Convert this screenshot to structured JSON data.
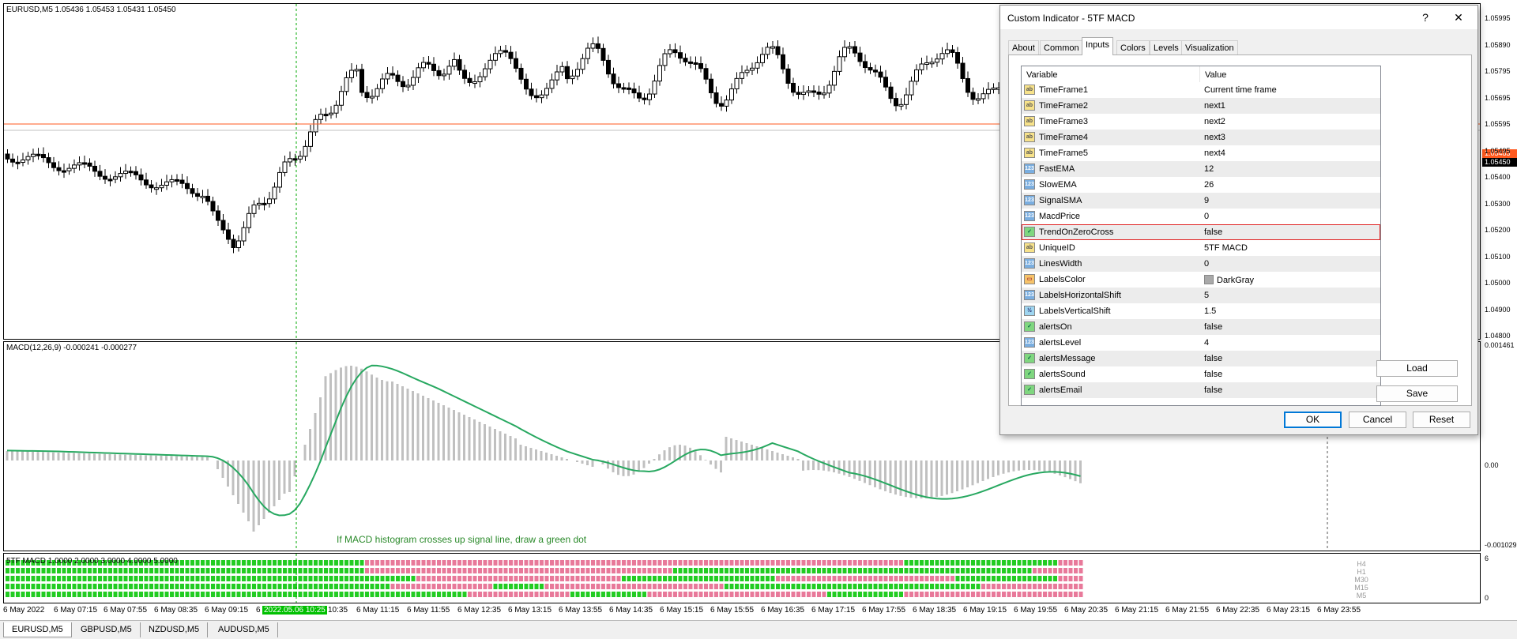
{
  "main_chart": {
    "label": "EURUSD,M5  1.05436 1.05453 1.05431 1.05450",
    "price_labels": [
      "1.05995",
      "1.05890",
      "1.05795",
      "1.05695",
      "1.05595",
      "1.05495",
      "1.05400",
      "1.05300",
      "1.05200",
      "1.05100",
      "1.05000",
      "1.04900",
      "1.04800"
    ],
    "bid_badge": "1.05483",
    "ask_badge": "1.05450",
    "bid_color": "#ff5a1f",
    "ask_color": "#000000"
  },
  "macd": {
    "label": "MACD(12,26,9) -0.000241 -0.000277",
    "scale_top": "0.001461",
    "scale_zero": "0.00",
    "scale_bottom": "-0.001029",
    "annotation": "If MACD histogram crosses up signal line, draw a green dot",
    "signal_color": "#27a860",
    "histogram_color": "#c0c0c0"
  },
  "tf_macd": {
    "label": "5TF MACD 1.0000 2.0000 3.0000 4.0000 5.0000",
    "scale_top": "6",
    "scale_bottom": "0",
    "timeframe_labels": [
      "H4",
      "H1",
      "M30",
      "M15",
      "M5"
    ],
    "up_color": "#22cc22",
    "down_color": "#e8799a"
  },
  "time_axis": {
    "labels": [
      "6 May 2022",
      "6 May 07:15",
      "6 May 07:55",
      "6 May 08:35",
      "6 May 09:15",
      "6",
      "10:35",
      "6 May 11:15",
      "6 May 11:55",
      "6 May 12:35",
      "6 May 13:15",
      "6 May 13:55",
      "6 May 14:35",
      "6 May 15:15",
      "6 May 15:55",
      "6 May 16:35",
      "6 May 17:15",
      "6 May 17:55",
      "6 May 18:35",
      "6 May 19:15",
      "6 May 19:55",
      "6 May 20:35",
      "6 May 21:15",
      "6 May 21:55",
      "6 May 22:35",
      "6 May 23:15",
      "6 May 23:55"
    ],
    "crosshair_time": "2022.05.06 10:25"
  },
  "symbol_tabs": [
    "EURUSD,M5",
    "GBPUSD,M5",
    "NZDUSD,M5",
    "AUDUSD,M5"
  ],
  "dialog": {
    "title": "Custom Indicator - 5TF MACD",
    "help_label": "?",
    "close_label": "✕",
    "tabs": [
      "About",
      "Common",
      "Inputs",
      "Colors",
      "Levels",
      "Visualization"
    ],
    "active_tab": "Inputs",
    "columns": [
      "Variable",
      "Value"
    ],
    "rows": [
      {
        "icon": "ab",
        "name": "TimeFrame1",
        "value": "Current time frame"
      },
      {
        "icon": "ab",
        "name": "TimeFrame2",
        "value": "next1"
      },
      {
        "icon": "ab",
        "name": "TimeFrame3",
        "value": "next2"
      },
      {
        "icon": "ab",
        "name": "TimeFrame4",
        "value": "next3"
      },
      {
        "icon": "ab",
        "name": "TimeFrame5",
        "value": "next4"
      },
      {
        "icon": "123",
        "name": "FastEMA",
        "value": "12"
      },
      {
        "icon": "123",
        "name": "SlowEMA",
        "value": "26"
      },
      {
        "icon": "123",
        "name": "SignalSMA",
        "value": "9"
      },
      {
        "icon": "123",
        "name": "MacdPrice",
        "value": "0"
      },
      {
        "icon": "bool",
        "name": "TrendOnZeroCross",
        "value": "false"
      },
      {
        "icon": "ab",
        "name": "UniqueID",
        "value": "5TF MACD"
      },
      {
        "icon": "123",
        "name": "LinesWidth",
        "value": "0"
      },
      {
        "icon": "color",
        "name": "LabelsColor",
        "value": "DarkGray"
      },
      {
        "icon": "123",
        "name": "LabelsHorizontalShift",
        "value": "5"
      },
      {
        "icon": "frac",
        "name": "LabelsVerticalShift",
        "value": "1.5"
      },
      {
        "icon": "bool",
        "name": "alertsOn",
        "value": "false"
      },
      {
        "icon": "123",
        "name": "alertsLevel",
        "value": "4"
      },
      {
        "icon": "bool",
        "name": "alertsMessage",
        "value": "false"
      },
      {
        "icon": "bool",
        "name": "alertsSound",
        "value": "false"
      },
      {
        "icon": "bool",
        "name": "alertsEmail",
        "value": "false"
      }
    ],
    "selected_row": "TrendOnZeroCross",
    "load_label": "Load",
    "save_label": "Save",
    "ok_label": "OK",
    "cancel_label": "Cancel",
    "reset_label": "Reset"
  }
}
